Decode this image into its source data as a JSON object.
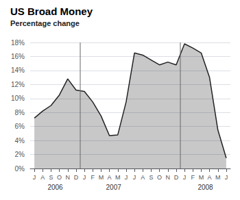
{
  "chart_data": {
    "type": "area",
    "title": "US Broad Money",
    "subtitle": "Percentage change",
    "categories": [
      "J",
      "A",
      "S",
      "O",
      "N",
      "D",
      "J",
      "F",
      "M",
      "A",
      "M",
      "J",
      "J",
      "A",
      "S",
      "O",
      "N",
      "D",
      "J",
      "F",
      "M",
      "A",
      "M",
      "J"
    ],
    "values": [
      7.2,
      8.2,
      9.0,
      10.5,
      12.8,
      11.2,
      11.0,
      9.5,
      7.5,
      4.7,
      4.8,
      9.5,
      16.5,
      16.2,
      15.5,
      14.8,
      15.2,
      14.8,
      17.8,
      17.2,
      16.5,
      13.0,
      5.5,
      1.5
    ],
    "color": "#222222",
    "ylim": [
      0,
      18
    ],
    "yticks": [
      {
        "value": 0,
        "label": "0%"
      },
      {
        "value": 2,
        "label": "2%"
      },
      {
        "value": 4,
        "label": "4%"
      },
      {
        "value": 6,
        "label": "6%"
      },
      {
        "value": 8,
        "label": "8%"
      },
      {
        "value": 10,
        "label": "10%"
      },
      {
        "value": 12,
        "label": "12%"
      },
      {
        "value": 14,
        "label": "14%"
      },
      {
        "value": 16,
        "label": "16%"
      },
      {
        "value": 18,
        "label": "18%"
      }
    ],
    "grid": true,
    "annotations": [
      {
        "text": "2006",
        "x": 2.5
      },
      {
        "text": "2007",
        "x": 9.5
      },
      {
        "text": "2008",
        "x": 20.5
      }
    ],
    "dividers": [
      5.5,
      17.5
    ]
  }
}
